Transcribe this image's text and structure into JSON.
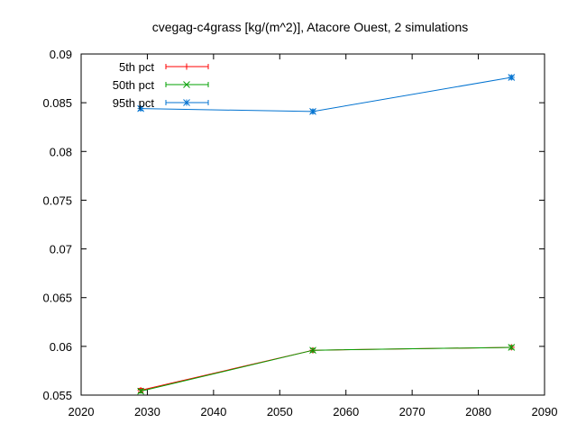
{
  "chart_data": {
    "type": "line",
    "title": "cvegag-c4grass [kg/(m^2)], Atacore Ouest, 2 simulations",
    "xlabel": "",
    "ylabel": "",
    "xlim": [
      2020,
      2090
    ],
    "ylim": [
      0.055,
      0.09
    ],
    "x_ticks": [
      2020,
      2030,
      2040,
      2050,
      2060,
      2070,
      2080,
      2090
    ],
    "y_ticks": [
      0.055,
      0.06,
      0.065,
      0.07,
      0.075,
      0.08,
      0.085,
      0.09
    ],
    "x_tick_labels": [
      "2020",
      "2030",
      "2040",
      "2050",
      "2060",
      "2070",
      "2080",
      "2090"
    ],
    "y_tick_labels": [
      "0.055",
      "0.06",
      "0.065",
      "0.07",
      "0.075",
      "0.08",
      "0.085",
      "0.09"
    ],
    "grid": false,
    "legend_position": "top-left",
    "x": [
      2029,
      2055,
      2085
    ],
    "series": [
      {
        "name": "5th pct",
        "color": "#ff0000",
        "marker": "plus",
        "values": [
          0.0555,
          0.0596,
          0.0599
        ]
      },
      {
        "name": "50th pct",
        "color": "#00a000",
        "marker": "cross",
        "values": [
          0.0554,
          0.0596,
          0.0599
        ]
      },
      {
        "name": "95th pct",
        "color": "#0072d0",
        "marker": "star",
        "values": [
          0.0844,
          0.0841,
          0.0876
        ]
      }
    ]
  }
}
